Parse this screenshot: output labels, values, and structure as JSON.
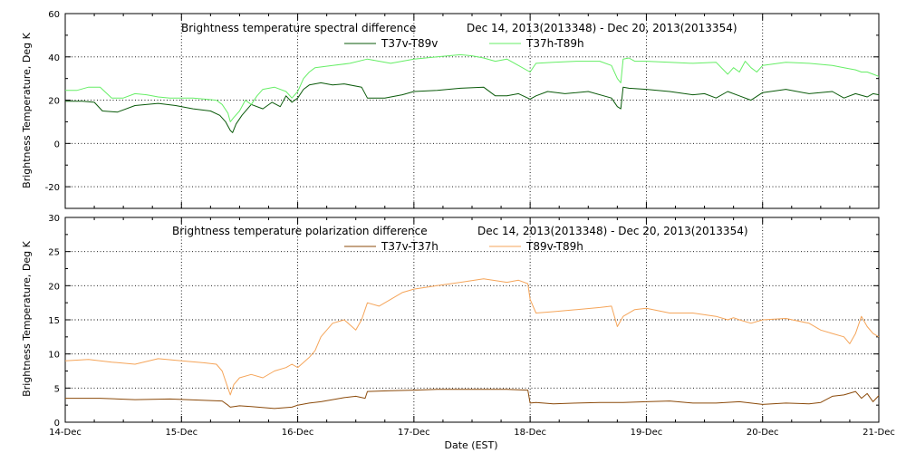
{
  "chart_data": [
    {
      "type": "line",
      "title": "Brightness temperature spectral difference",
      "subtitle": "Dec 14, 2013(2013348) - Dec 20, 2013(2013354)",
      "ylabel": "Brightness Temperature, Deg K",
      "xlabel": "",
      "ylim": [
        -30,
        60
      ],
      "yticks": [
        -20,
        0,
        20,
        40,
        60
      ],
      "xlim": [
        "14-Dec",
        "21-Dec"
      ],
      "x_unit": "day (EST), fractional",
      "grid": true,
      "series": [
        {
          "name": "T37v-T89v",
          "color": "#0a5a0a",
          "x": [
            14.0,
            14.15,
            14.25,
            14.32,
            14.45,
            14.6,
            14.8,
            14.95,
            15.1,
            15.25,
            15.33,
            15.38,
            15.42,
            15.44,
            15.47,
            15.52,
            15.6,
            15.7,
            15.78,
            15.85,
            15.9,
            15.95,
            16.0,
            16.05,
            16.1,
            16.2,
            16.3,
            16.4,
            16.55,
            16.6,
            16.75,
            16.9,
            17.0,
            17.2,
            17.4,
            17.6,
            17.7,
            17.8,
            17.9,
            18.0,
            18.05,
            18.15,
            18.3,
            18.5,
            18.7,
            18.75,
            18.78,
            18.8,
            18.85,
            19.0,
            19.2,
            19.4,
            19.5,
            19.6,
            19.7,
            19.8,
            19.9,
            20.0,
            20.2,
            20.4,
            20.6,
            20.7,
            20.8,
            20.9,
            20.95,
            21.0
          ],
          "values": [
            19.5,
            19.5,
            19,
            15,
            14.5,
            17.5,
            18.5,
            17.5,
            16,
            15,
            13,
            10,
            6,
            5,
            9,
            13,
            18,
            16,
            19,
            17,
            22,
            19,
            21,
            25,
            27,
            28,
            27,
            27.5,
            26,
            21,
            21,
            22.5,
            24,
            24.5,
            25.5,
            26,
            22,
            22,
            23,
            20.5,
            22,
            24,
            23,
            24,
            21,
            17,
            16,
            26,
            25.5,
            25,
            24,
            22.5,
            23,
            21,
            24,
            22,
            20,
            23.5,
            25,
            23,
            24,
            21,
            23,
            21.5,
            23,
            22.5
          ]
        },
        {
          "name": "T37h-T89h",
          "color": "#66ee66",
          "x": [
            14.0,
            14.1,
            14.2,
            14.3,
            14.4,
            14.5,
            14.6,
            14.7,
            14.8,
            14.9,
            15.0,
            15.1,
            15.2,
            15.3,
            15.35,
            15.4,
            15.42,
            15.45,
            15.5,
            15.55,
            15.6,
            15.65,
            15.7,
            15.8,
            15.9,
            15.95,
            16.0,
            16.05,
            16.1,
            16.15,
            16.3,
            16.45,
            16.6,
            16.8,
            17.0,
            17.2,
            17.4,
            17.5,
            17.6,
            17.7,
            17.8,
            17.9,
            18.0,
            18.05,
            18.2,
            18.4,
            18.6,
            18.7,
            18.75,
            18.78,
            18.8,
            18.85,
            18.9,
            19.0,
            19.2,
            19.4,
            19.6,
            19.7,
            19.75,
            19.8,
            19.85,
            19.9,
            19.95,
            20.0,
            20.2,
            20.4,
            20.6,
            20.7,
            20.8,
            20.85,
            20.9,
            20.95,
            21.0
          ],
          "values": [
            24.5,
            24.5,
            26,
            26,
            21,
            21,
            23,
            22.5,
            21.5,
            21,
            21,
            21,
            20.5,
            20,
            18,
            14,
            10,
            12,
            15,
            20,
            18,
            22,
            25,
            26,
            24,
            21,
            24,
            30,
            33,
            35,
            36,
            37,
            39,
            37,
            39,
            40,
            41,
            40.5,
            39.5,
            38,
            39,
            36,
            33,
            37,
            37.5,
            38,
            38,
            36,
            30,
            28,
            39,
            39.5,
            38,
            38,
            37.5,
            37,
            37.5,
            32,
            35,
            33,
            38,
            35,
            33,
            36,
            37.5,
            37,
            36,
            35,
            34,
            33,
            33,
            32,
            31
          ]
        }
      ]
    },
    {
      "type": "line",
      "title": "Brightness temperature polarization difference",
      "subtitle": "Dec 14, 2013(2013348) - Dec 20, 2013(2013354)",
      "ylabel": "Brightness Temperature, Deg K",
      "xlabel": "Date (EST)",
      "ylim": [
        0,
        30
      ],
      "yticks": [
        0,
        5,
        10,
        15,
        20,
        25,
        30
      ],
      "xlim": [
        "14-Dec",
        "21-Dec"
      ],
      "xticks": [
        "14-Dec",
        "15-Dec",
        "16-Dec",
        "17-Dec",
        "18-Dec",
        "19-Dec",
        "20-Dec",
        "21-Dec"
      ],
      "x_unit": "day (EST), fractional",
      "grid": true,
      "series": [
        {
          "name": "T37v-T37h",
          "color": "#8b4a0a",
          "x": [
            14.0,
            14.3,
            14.6,
            14.9,
            15.2,
            15.35,
            15.4,
            15.42,
            15.5,
            15.6,
            15.8,
            15.95,
            16.0,
            16.1,
            16.2,
            16.3,
            16.4,
            16.5,
            16.58,
            16.6,
            16.8,
            17.0,
            17.2,
            17.5,
            17.8,
            17.98,
            18.0,
            18.05,
            18.2,
            18.4,
            18.6,
            18.8,
            19.0,
            19.2,
            19.4,
            19.6,
            19.8,
            20.0,
            20.2,
            20.4,
            20.5,
            20.6,
            20.7,
            20.8,
            20.85,
            20.9,
            20.95,
            21.0
          ],
          "values": [
            3.5,
            3.5,
            3.3,
            3.4,
            3.2,
            3.1,
            2.5,
            2.2,
            2.4,
            2.3,
            2.0,
            2.2,
            2.5,
            2.8,
            3.0,
            3.3,
            3.6,
            3.8,
            3.5,
            4.5,
            4.6,
            4.7,
            4.8,
            4.8,
            4.8,
            4.7,
            2.8,
            2.9,
            2.7,
            2.8,
            2.9,
            2.9,
            3.0,
            3.1,
            2.8,
            2.8,
            3.0,
            2.6,
            2.8,
            2.7,
            2.9,
            3.8,
            4.0,
            4.5,
            3.5,
            4.2,
            3.0,
            3.9
          ]
        },
        {
          "name": "T89v-T89h",
          "color": "#f5a55a",
          "x": [
            14.0,
            14.2,
            14.4,
            14.6,
            14.8,
            15.0,
            15.2,
            15.3,
            15.35,
            15.4,
            15.42,
            15.45,
            15.5,
            15.6,
            15.7,
            15.8,
            15.9,
            15.95,
            16.0,
            16.1,
            16.15,
            16.2,
            16.3,
            16.4,
            16.5,
            16.55,
            16.6,
            16.7,
            16.8,
            16.9,
            17.0,
            17.2,
            17.4,
            17.6,
            17.8,
            17.9,
            17.98,
            18.0,
            18.05,
            18.2,
            18.4,
            18.6,
            18.7,
            18.75,
            18.8,
            18.9,
            19.0,
            19.2,
            19.4,
            19.6,
            19.7,
            19.75,
            19.8,
            19.9,
            20.0,
            20.2,
            20.4,
            20.5,
            20.6,
            20.7,
            20.75,
            20.8,
            20.85,
            20.9,
            20.95,
            21.0
          ],
          "values": [
            9.0,
            9.2,
            8.8,
            8.5,
            9.3,
            9.0,
            8.7,
            8.5,
            7.5,
            5.0,
            4.0,
            5.5,
            6.5,
            7.0,
            6.5,
            7.5,
            8.0,
            8.5,
            8.0,
            9.5,
            10.5,
            12.5,
            14.5,
            15.0,
            13.5,
            15.0,
            17.5,
            17.0,
            18.0,
            19.0,
            19.5,
            20.0,
            20.5,
            21.0,
            20.5,
            20.8,
            20.3,
            18.0,
            16.0,
            16.2,
            16.5,
            16.8,
            17.0,
            14.0,
            15.5,
            16.5,
            16.7,
            16.0,
            16.0,
            15.5,
            15.0,
            15.3,
            15.0,
            14.5,
            15.0,
            15.2,
            14.5,
            13.5,
            13.0,
            12.5,
            11.5,
            13.0,
            15.5,
            14.0,
            13.0,
            12.5
          ]
        }
      ]
    }
  ]
}
